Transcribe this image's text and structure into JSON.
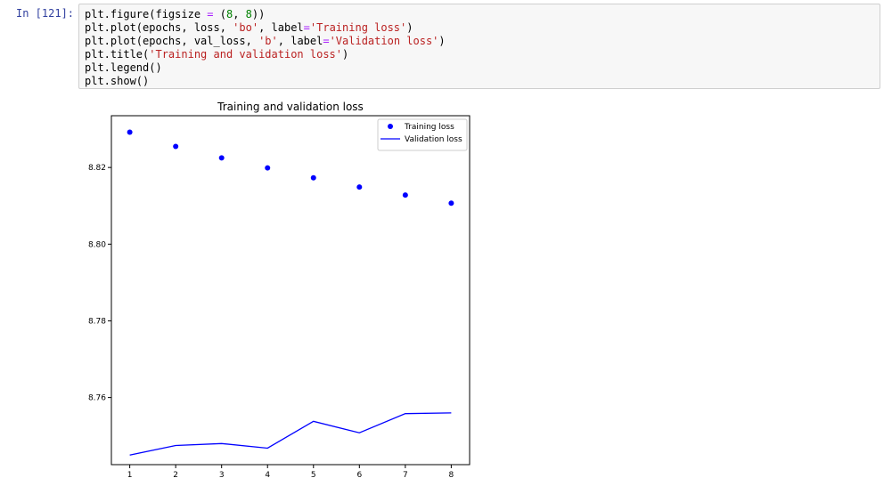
{
  "cell": {
    "prompt": "In [121]:",
    "code_lines": [
      [
        {
          "t": "plt.figure(figsize "
        },
        {
          "t": "=",
          "c": "op"
        },
        {
          "t": " ("
        },
        {
          "t": "8",
          "c": "num"
        },
        {
          "t": ", "
        },
        {
          "t": "8",
          "c": "num"
        },
        {
          "t": "))"
        }
      ],
      [
        {
          "t": "plt.plot(epochs, loss, "
        },
        {
          "t": "'bo'",
          "c": "str"
        },
        {
          "t": ", label"
        },
        {
          "t": "=",
          "c": "op"
        },
        {
          "t": "'Training loss'",
          "c": "str"
        },
        {
          "t": ")"
        }
      ],
      [
        {
          "t": "plt.plot(epochs, val_loss, "
        },
        {
          "t": "'b'",
          "c": "str"
        },
        {
          "t": ", label"
        },
        {
          "t": "=",
          "c": "op"
        },
        {
          "t": "'Validation loss'",
          "c": "str"
        },
        {
          "t": ")"
        }
      ],
      [
        {
          "t": "plt.title("
        },
        {
          "t": "'Training and validation loss'",
          "c": "str"
        },
        {
          "t": ")"
        }
      ],
      [
        {
          "t": "plt.legend()"
        }
      ],
      [
        {
          "t": "plt.show()"
        }
      ]
    ]
  },
  "chart_data": {
    "type": "line",
    "title": "Training and validation loss",
    "xlabel": "",
    "ylabel": "",
    "x": [
      1,
      2,
      3,
      4,
      5,
      6,
      7,
      8
    ],
    "xticks": [
      1,
      2,
      3,
      4,
      5,
      6,
      7,
      8
    ],
    "yticks": [
      8.76,
      8.78,
      8.8,
      8.82
    ],
    "ytick_labels": [
      "8.76",
      "8.78",
      "8.80",
      "8.82"
    ],
    "xlim": [
      0.6,
      8.4
    ],
    "ylim": [
      8.7425,
      8.8335
    ],
    "grid": false,
    "legend_position": "top-right",
    "series": [
      {
        "name": "Training loss",
        "style": "points",
        "color": "#0000ff",
        "values": [
          8.8292,
          8.8255,
          8.8225,
          8.8199,
          8.8173,
          8.8149,
          8.8128,
          8.8107
        ]
      },
      {
        "name": "Validation loss",
        "style": "line",
        "color": "#0000ff",
        "values": [
          8.745,
          8.7475,
          8.748,
          8.7468,
          8.7538,
          8.7508,
          8.7558,
          8.756
        ]
      }
    ]
  }
}
